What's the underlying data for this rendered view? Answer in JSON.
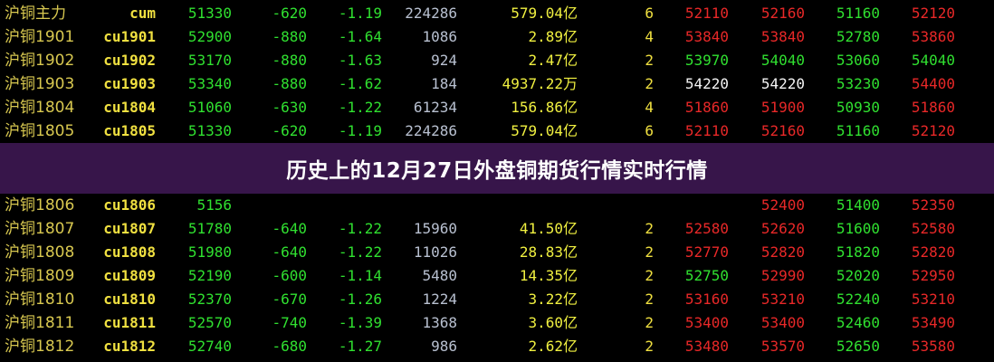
{
  "title": "历史上的12月27日外盘铜期货行情实时行情",
  "rows": [
    {
      "name": "沪铜主力",
      "code": "cum",
      "price": "51330",
      "change": "-620",
      "pct": "-1.19",
      "volume": "224286",
      "amount": "579.04亿",
      "count": "6",
      "p1": "52110",
      "p1c": "red",
      "p2": "52160",
      "p2c": "red",
      "p3": "51160",
      "p3c": "green",
      "p4": "52120",
      "p4c": "red"
    },
    {
      "name": "沪铜1901",
      "code": "cu1901",
      "price": "52900",
      "change": "-880",
      "pct": "-1.64",
      "volume": "1086",
      "amount": "2.89亿",
      "count": "4",
      "p1": "53840",
      "p1c": "red",
      "p2": "53840",
      "p2c": "red",
      "p3": "52780",
      "p3c": "green",
      "p4": "53860",
      "p4c": "red"
    },
    {
      "name": "沪铜1902",
      "code": "cu1902",
      "price": "53170",
      "change": "-880",
      "pct": "-1.63",
      "volume": "924",
      "amount": "2.47亿",
      "count": "2",
      "p1": "53970",
      "p1c": "green",
      "p2": "54040",
      "p2c": "green",
      "p3": "53060",
      "p3c": "green",
      "p4": "54040",
      "p4c": "green"
    },
    {
      "name": "沪铜1903",
      "code": "cu1903",
      "price": "53340",
      "change": "-880",
      "pct": "-1.62",
      "volume": "184",
      "amount": "4937.22万",
      "count": "2",
      "p1": "54220",
      "p1c": "white",
      "p2": "54220",
      "p2c": "white",
      "p3": "53230",
      "p3c": "green",
      "p4": "54400",
      "p4c": "red"
    },
    {
      "name": "沪铜1804",
      "code": "cu1804",
      "price": "51060",
      "change": "-630",
      "pct": "-1.22",
      "volume": "61234",
      "amount": "156.86亿",
      "count": "4",
      "p1": "51860",
      "p1c": "red",
      "p2": "51900",
      "p2c": "red",
      "p3": "50930",
      "p3c": "green",
      "p4": "51860",
      "p4c": "red"
    },
    {
      "name": "沪铜1805",
      "code": "cu1805",
      "price": "51330",
      "change": "-620",
      "pct": "-1.19",
      "volume": "224286",
      "amount": "579.04亿",
      "count": "6",
      "p1": "52110",
      "p1c": "red",
      "p2": "52160",
      "p2c": "red",
      "p3": "51160",
      "p3c": "green",
      "p4": "52120",
      "p4c": "red"
    },
    {
      "name": "沪铜1806",
      "code": "cu1806",
      "price": "5156",
      "change": "",
      "pct": "",
      "volume": "",
      "amount": "",
      "count": "",
      "p1": "",
      "p1c": "red",
      "p2": "52400",
      "p2c": "red",
      "p3": "51400",
      "p3c": "green",
      "p4": "52350",
      "p4c": "red"
    },
    {
      "name": "沪铜1807",
      "code": "cu1807",
      "price": "51780",
      "change": "-640",
      "pct": "-1.22",
      "volume": "15960",
      "amount": "41.50亿",
      "count": "2",
      "p1": "52580",
      "p1c": "red",
      "p2": "52620",
      "p2c": "red",
      "p3": "51600",
      "p3c": "green",
      "p4": "52580",
      "p4c": "red"
    },
    {
      "name": "沪铜1808",
      "code": "cu1808",
      "price": "51980",
      "change": "-640",
      "pct": "-1.22",
      "volume": "11026",
      "amount": "28.83亿",
      "count": "2",
      "p1": "52770",
      "p1c": "red",
      "p2": "52820",
      "p2c": "red",
      "p3": "51820",
      "p3c": "green",
      "p4": "52820",
      "p4c": "red"
    },
    {
      "name": "沪铜1809",
      "code": "cu1809",
      "price": "52190",
      "change": "-600",
      "pct": "-1.14",
      "volume": "5480",
      "amount": "14.35亿",
      "count": "2",
      "p1": "52750",
      "p1c": "green",
      "p2": "52990",
      "p2c": "red",
      "p3": "52020",
      "p3c": "green",
      "p4": "52950",
      "p4c": "red"
    },
    {
      "name": "沪铜1810",
      "code": "cu1810",
      "price": "52370",
      "change": "-670",
      "pct": "-1.26",
      "volume": "1224",
      "amount": "3.22亿",
      "count": "2",
      "p1": "53160",
      "p1c": "red",
      "p2": "53210",
      "p2c": "red",
      "p3": "52240",
      "p3c": "green",
      "p4": "53210",
      "p4c": "red"
    },
    {
      "name": "沪铜1811",
      "code": "cu1811",
      "price": "52570",
      "change": "-740",
      "pct": "-1.39",
      "volume": "1368",
      "amount": "3.60亿",
      "count": "2",
      "p1": "53400",
      "p1c": "red",
      "p2": "53400",
      "p2c": "red",
      "p3": "52460",
      "p3c": "green",
      "p4": "53490",
      "p4c": "red"
    },
    {
      "name": "沪铜1812",
      "code": "cu1812",
      "price": "52740",
      "change": "-680",
      "pct": "-1.27",
      "volume": "986",
      "amount": "2.62亿",
      "count": "2",
      "p1": "53480",
      "p1c": "red",
      "p2": "53570",
      "p2c": "red",
      "p3": "52650",
      "p3c": "green",
      "p4": "53580",
      "p4c": "red"
    }
  ],
  "colors": {
    "red": "#e82828",
    "green": "#30e030",
    "white": "#f4f4f4",
    "name": "#d8c850",
    "code": "#f0e040",
    "banner": "#3a164e"
  }
}
